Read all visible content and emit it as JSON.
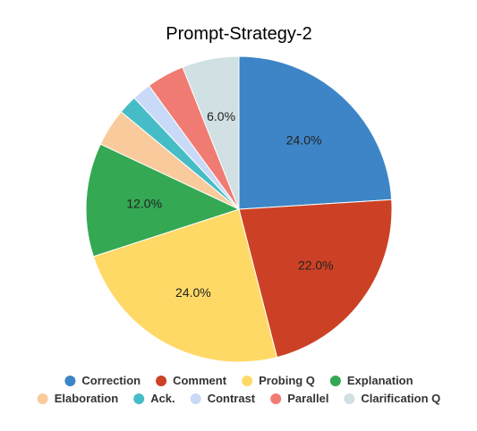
{
  "chart_data": {
    "type": "pie",
    "title": "Prompt-Strategy-2",
    "slices": [
      {
        "label": "Correction",
        "value": 24.0,
        "color": "#3d85c6",
        "display": "24.0%"
      },
      {
        "label": "Comment",
        "value": 22.0,
        "color": "#cc4125",
        "display": "22.0%"
      },
      {
        "label": "Probing Q",
        "value": 24.0,
        "color": "#ffd966",
        "display": "24.0%"
      },
      {
        "label": "Explanation",
        "value": 12.0,
        "color": "#34a853",
        "display": "12.0%"
      },
      {
        "label": "Elaboration",
        "value": 4.0,
        "color": "#f9cb9c",
        "display": ""
      },
      {
        "label": "Ack.",
        "value": 2.0,
        "color": "#46bdc6",
        "display": ""
      },
      {
        "label": "Contrast",
        "value": 2.0,
        "color": "#c9daf8",
        "display": ""
      },
      {
        "label": "Parallel",
        "value": 4.0,
        "color": "#f07b72",
        "display": ""
      },
      {
        "label": "Clarification Q",
        "value": 6.0,
        "color": "#d0e0e3",
        "display": "6.0%"
      }
    ],
    "legend_position": "bottom",
    "start_angle": "12 o'clock",
    "direction": "clockwise"
  }
}
